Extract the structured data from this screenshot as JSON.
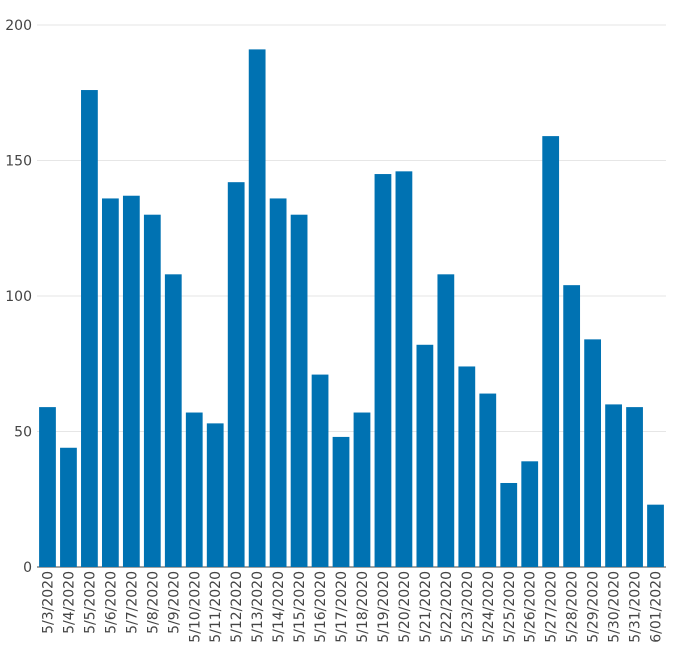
{
  "chart_data": {
    "type": "bar",
    "title": "",
    "xlabel": "",
    "ylabel": "",
    "ylim": [
      0,
      200
    ],
    "yticks": [
      0,
      50,
      100,
      150,
      200
    ],
    "grid": true,
    "legend": "none",
    "bar_color": "#0072B2",
    "grid_color": "#e6e6e6",
    "categories": [
      "5/3/2020",
      "5/4/2020",
      "5/5/2020",
      "5/6/2020",
      "5/7/2020",
      "5/8/2020",
      "5/9/2020",
      "5/10/2020",
      "5/11/2020",
      "5/12/2020",
      "5/13/2020",
      "5/14/2020",
      "5/15/2020",
      "5/16/2020",
      "5/17/2020",
      "5/18/2020",
      "5/19/2020",
      "5/20/2020",
      "5/21/2020",
      "5/22/2020",
      "5/23/2020",
      "5/24/2020",
      "5/25/2020",
      "5/26/2020",
      "5/27/2020",
      "5/28/2020",
      "5/29/2020",
      "5/30/2020",
      "5/31/2020",
      "6/01/2020"
    ],
    "values": [
      59,
      44,
      176,
      136,
      137,
      130,
      108,
      57,
      53,
      142,
      191,
      136,
      130,
      71,
      48,
      57,
      145,
      146,
      82,
      108,
      74,
      64,
      31,
      39,
      159,
      104,
      84,
      60,
      59,
      23
    ]
  }
}
